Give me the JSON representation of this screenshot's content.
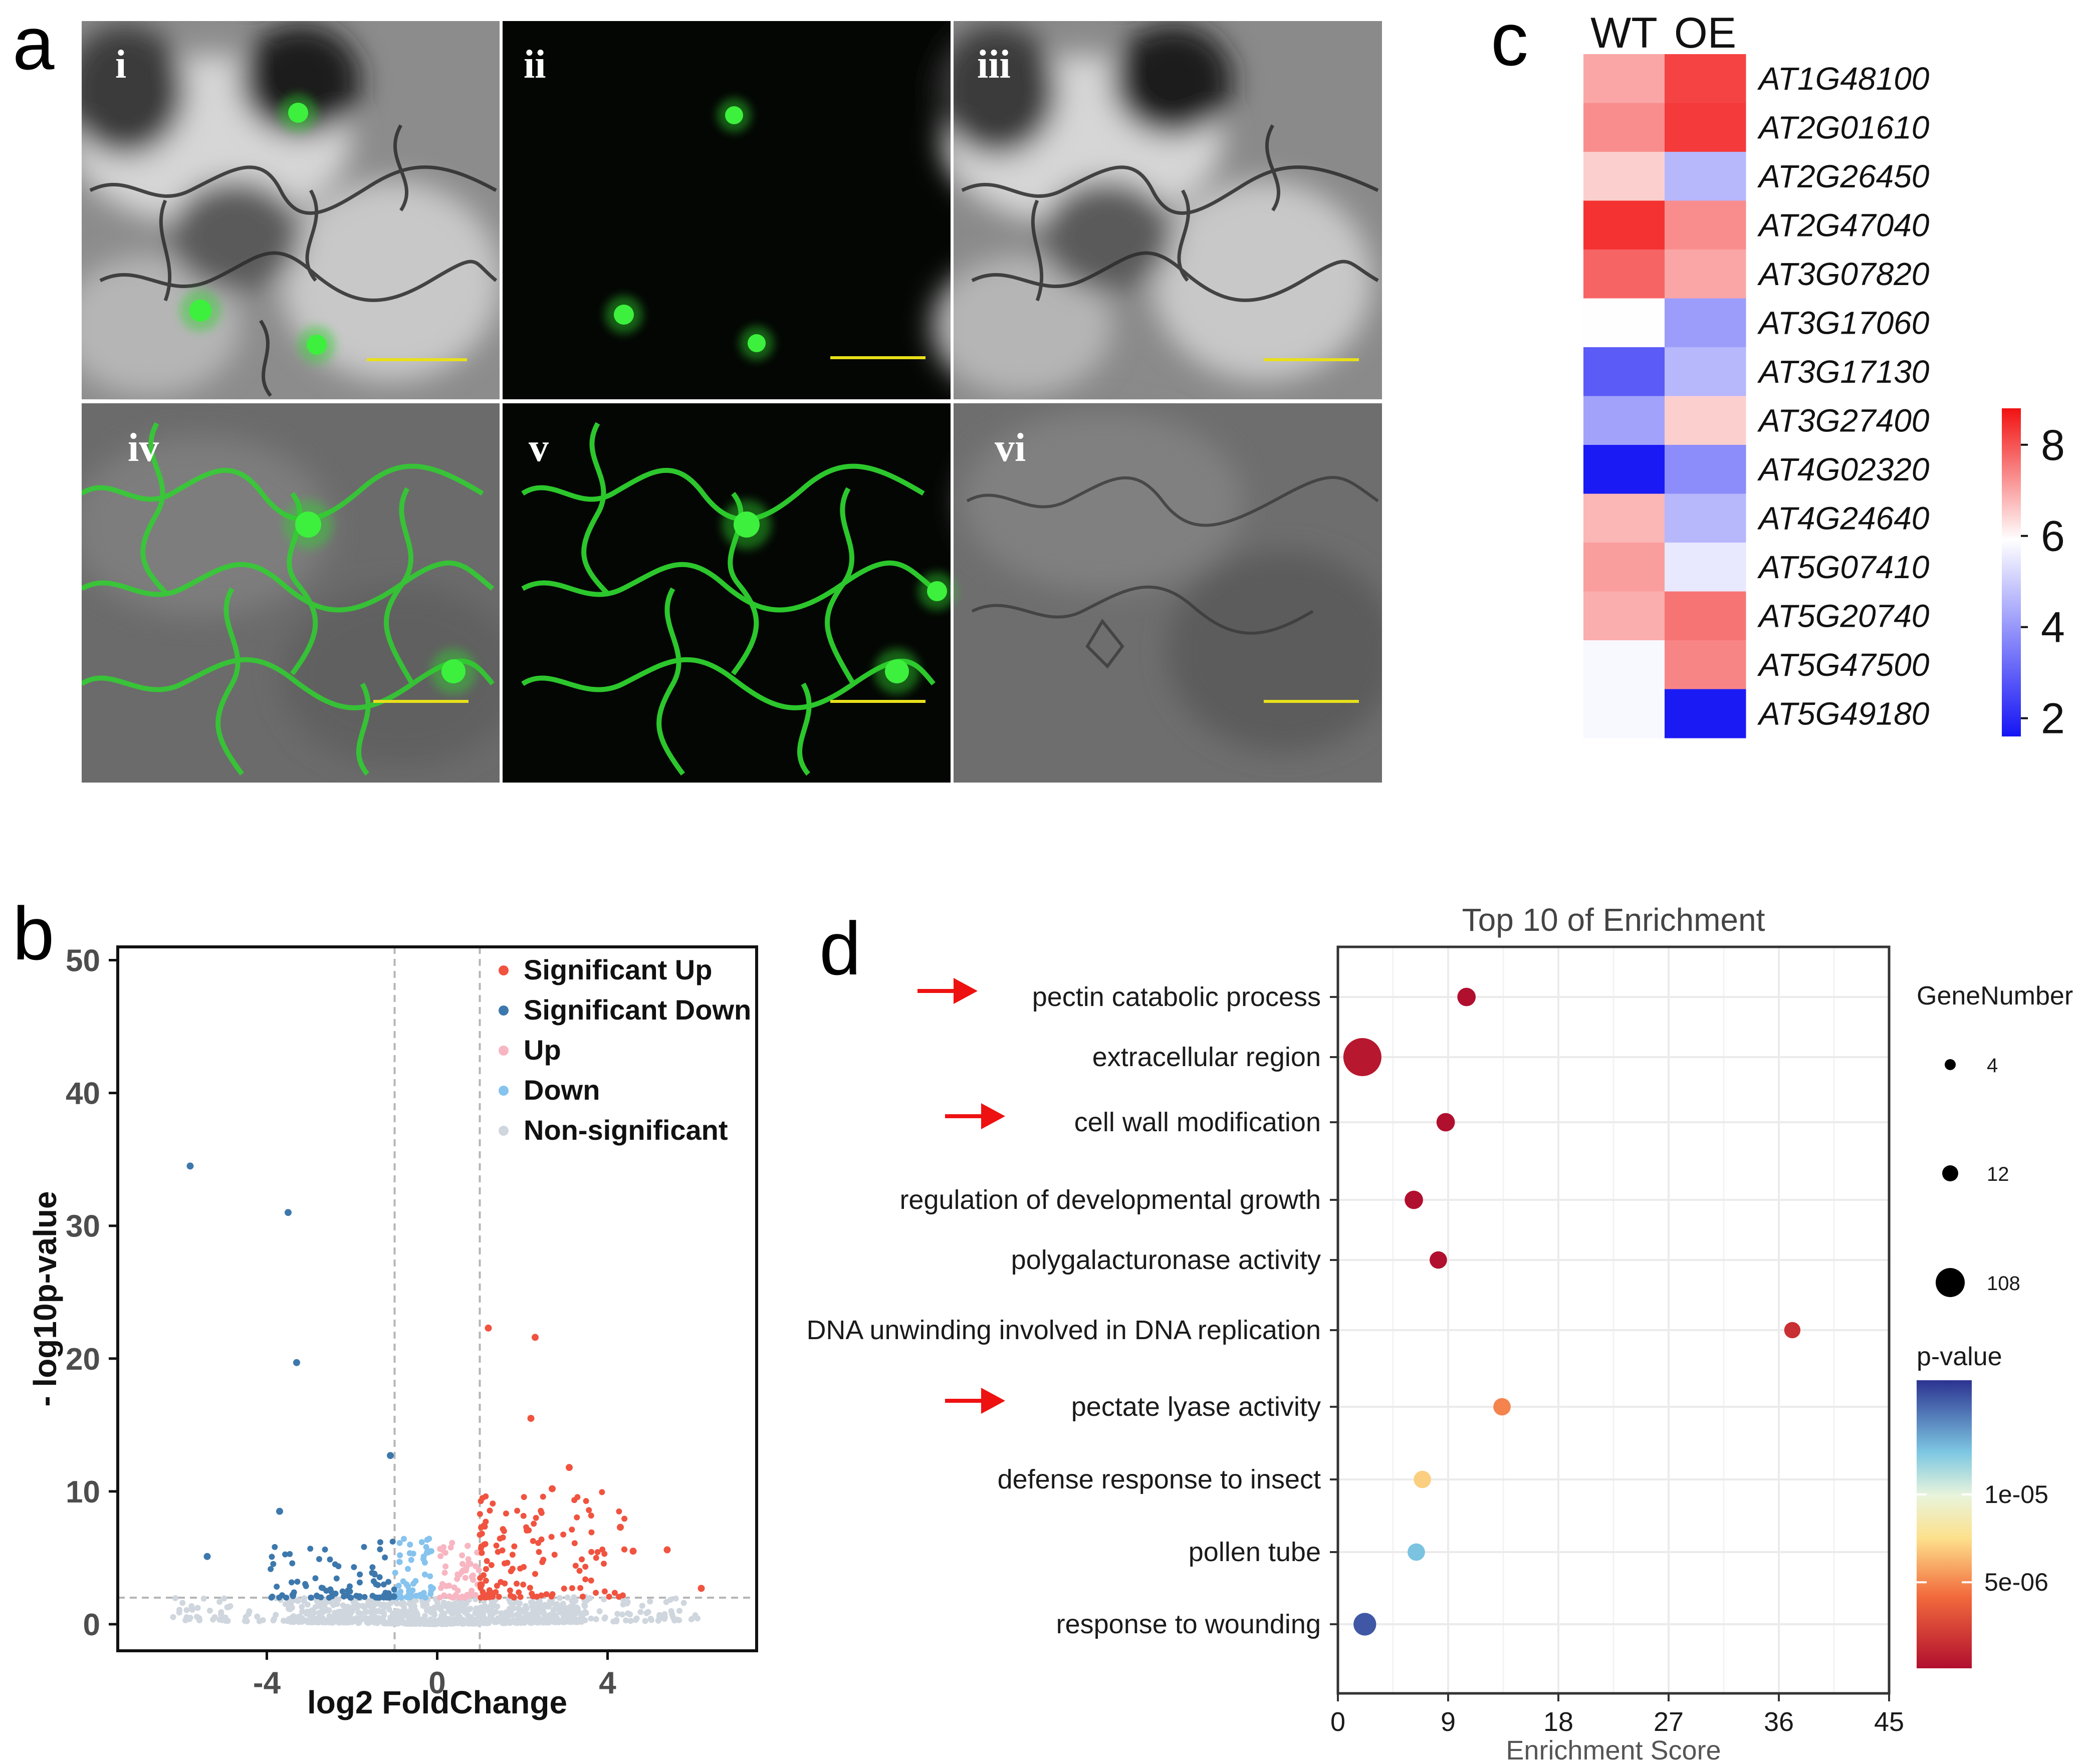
{
  "panels": {
    "a": {
      "letter": "a",
      "subpanels": [
        {
          "label": "i"
        },
        {
          "label": "ii"
        },
        {
          "label": "iii"
        },
        {
          "label": "iv"
        },
        {
          "label": "v"
        },
        {
          "label": "vi"
        }
      ],
      "colors": {
        "scale_bar": "#e8e01a",
        "gfp": "#2fd22f"
      }
    },
    "b": {
      "letter": "b"
    },
    "c": {
      "letter": "c"
    },
    "d": {
      "letter": "d"
    }
  },
  "chart_data": [
    {
      "panel": "b",
      "type": "scatter",
      "xlabel": "log2 FoldChange",
      "ylabel": "- log10p-value",
      "xlim": [
        -7.5,
        7.5
      ],
      "ylim": [
        -2,
        51
      ],
      "xticks": [
        -4,
        0,
        4
      ],
      "yticks": [
        0,
        10,
        20,
        30,
        40,
        50
      ],
      "thresholds": {
        "x": [
          -1,
          1
        ],
        "y": 2
      },
      "legend_position": "top-right",
      "legend": [
        {
          "name": "Significant Up",
          "color": "#f0533f"
        },
        {
          "name": "Significant Down",
          "color": "#3d78ad"
        },
        {
          "name": "Up",
          "color": "#f7b6c2"
        },
        {
          "name": "Down",
          "color": "#86c3ee"
        },
        {
          "name": "Non-significant",
          "color": "#cfd6de"
        }
      ],
      "labeled_points": [
        {
          "x": -5.8,
          "y": 34.5,
          "group": "Significant Down"
        },
        {
          "x": -3.5,
          "y": 31.0,
          "group": "Significant Down"
        },
        {
          "x": -3.3,
          "y": 19.7,
          "group": "Significant Down"
        },
        {
          "x": -1.1,
          "y": 12.7,
          "group": "Significant Down"
        },
        {
          "x": -3.7,
          "y": 8.5,
          "group": "Significant Down"
        },
        {
          "x": -5.4,
          "y": 5.1,
          "group": "Significant Down"
        },
        {
          "x": 1.2,
          "y": 22.3,
          "group": "Significant Up"
        },
        {
          "x": 2.3,
          "y": 21.6,
          "group": "Significant Up"
        },
        {
          "x": 2.2,
          "y": 15.5,
          "group": "Significant Up"
        },
        {
          "x": 3.1,
          "y": 11.8,
          "group": "Significant Up"
        },
        {
          "x": 2.7,
          "y": 10.2,
          "group": "Significant Up"
        },
        {
          "x": 4.3,
          "y": 7.3,
          "group": "Significant Up"
        },
        {
          "x": 5.4,
          "y": 5.6,
          "group": "Significant Up"
        },
        {
          "x": 4.6,
          "y": 5.5,
          "group": "Significant Up"
        },
        {
          "x": 6.2,
          "y": 2.7,
          "group": "Significant Up"
        }
      ]
    },
    {
      "panel": "c",
      "type": "heatmap",
      "columns": [
        "WT",
        "OE"
      ],
      "rows": [
        "AT1G48100",
        "AT2G01610",
        "AT2G26450",
        "AT2G47040",
        "AT3G07820",
        "AT3G17060",
        "AT3G17130",
        "AT3G27400",
        "AT4G02320",
        "AT4G24640",
        "AT5G07410",
        "AT5G20740",
        "AT5G47500",
        "AT5G49180"
      ],
      "values": [
        [
          7.0,
          8.2
        ],
        [
          7.3,
          8.3
        ],
        [
          6.5,
          4.6
        ],
        [
          8.4,
          7.3
        ],
        [
          7.8,
          7.0
        ],
        [
          5.9,
          4.1
        ],
        [
          2.9,
          4.6
        ],
        [
          4.2,
          6.5
        ],
        [
          1.7,
          3.8
        ],
        [
          6.8,
          4.6
        ],
        [
          7.1,
          5.5
        ],
        [
          6.9,
          7.6
        ],
        [
          5.8,
          7.4
        ],
        [
          5.8,
          1.7
        ]
      ],
      "colorbar": {
        "ticks": [
          2,
          4,
          6,
          8
        ],
        "range": [
          1.6,
          8.8
        ],
        "low": "#1515f5",
        "mid": "#ffffff",
        "high": "#f21111"
      }
    },
    {
      "panel": "d",
      "type": "scatter",
      "title": "Top 10 of  Enrichment",
      "xlabel": "Enrichment Score",
      "xlim": [
        0,
        45
      ],
      "xticks": [
        0,
        9,
        18,
        27,
        36,
        45
      ],
      "terms": [
        {
          "term": "pectin catabolic process",
          "score": 10.5,
          "genes": 8,
          "pvalue": 1e-07,
          "arrow": true
        },
        {
          "term": "extracellular region",
          "score": 2.0,
          "genes": 108,
          "pvalue": 5e-07,
          "arrow": false
        },
        {
          "term": "cell wall modification",
          "score": 8.8,
          "genes": 8,
          "pvalue": 1e-07,
          "arrow": true
        },
        {
          "term": "regulation of developmental growth",
          "score": 6.2,
          "genes": 8,
          "pvalue": 1e-07,
          "arrow": false
        },
        {
          "term": "polygalacturonase activity",
          "score": 8.2,
          "genes": 6,
          "pvalue": 1e-07,
          "arrow": false
        },
        {
          "term": "DNA unwinding involved in DNA replication",
          "score": 37.1,
          "genes": 4,
          "pvalue": 1.6e-06,
          "arrow": false
        },
        {
          "term": "pectate lyase activity",
          "score": 13.4,
          "genes": 6,
          "pvalue": 4.9e-06,
          "arrow": true
        },
        {
          "term": "defense response to insect",
          "score": 6.9,
          "genes": 6,
          "pvalue": 7e-06,
          "arrow": false
        },
        {
          "term": "pollen tube",
          "score": 6.4,
          "genes": 6,
          "pvalue": 1.25e-05,
          "arrow": false
        },
        {
          "term": "response to wounding",
          "score": 2.2,
          "genes": 20,
          "pvalue": 1.55e-05,
          "arrow": false
        }
      ],
      "size_legend": {
        "title": "GeneNumber",
        "values": [
          4,
          12,
          108
        ]
      },
      "color_legend": {
        "title": "p-value",
        "ticks": [
          "1e-05",
          "5e-06"
        ],
        "tick_values": [
          1e-05,
          5e-06
        ],
        "range": [
          1e-07,
          1.65e-05
        ]
      }
    }
  ]
}
